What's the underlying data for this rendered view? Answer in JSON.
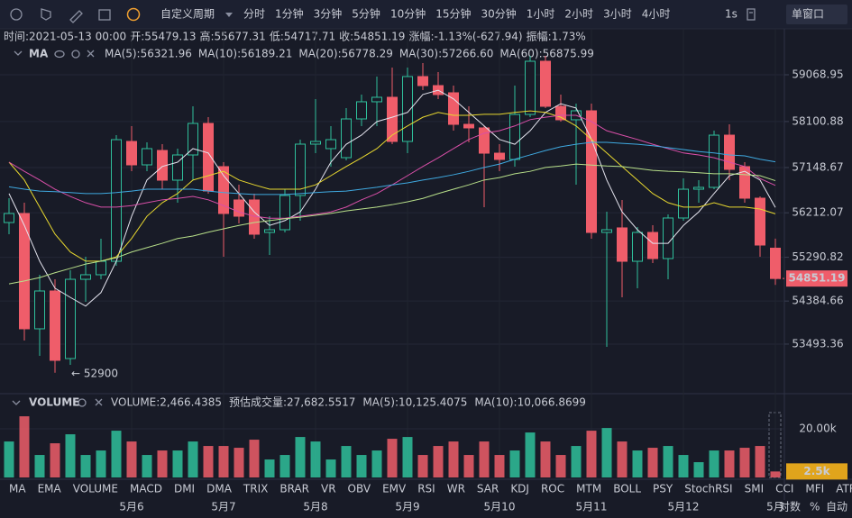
{
  "toolbar": {
    "period": "自定义周期",
    "intervals": [
      {
        "label": "分时"
      },
      {
        "label": "1分钟"
      },
      {
        "label": "3分钟"
      },
      {
        "label": "5分钟"
      },
      {
        "label": "10分钟"
      },
      {
        "label": "15分钟"
      },
      {
        "label": "30分钟"
      },
      {
        "label": "1小时"
      },
      {
        "label": "2小时"
      },
      {
        "label": "3小时"
      },
      {
        "label": "4小时",
        "active": true
      }
    ],
    "speed": "1s",
    "window": "单窗口"
  },
  "info": [
    {
      "label": "时间:",
      "value": "2021-05-13 00:00",
      "color": "#c8cbd4"
    },
    {
      "label": "开:",
      "value": "55479.13",
      "color": "#ef5d6a"
    },
    {
      "label": "高:",
      "value": "55677.31",
      "color": "#ef5d6a"
    },
    {
      "label": "低:",
      "value": "54717.71",
      "color": "#ef5d6a"
    },
    {
      "label": "收:",
      "value": "54851.19",
      "color": "#ef5d6a"
    },
    {
      "label": "涨幅:",
      "value": "-1.13%(-627.94)",
      "color": "#ef5d6a"
    },
    {
      "label": "振幅:",
      "value": "1.73%",
      "color": "#ef5d6a"
    }
  ],
  "chart_data": {
    "type": "candlestick",
    "categories": [
      null,
      null,
      null,
      null,
      null,
      null,
      null,
      null,
      "5月6",
      null,
      null,
      null,
      null,
      null,
      "5月7",
      null,
      null,
      null,
      null,
      null,
      "5月8",
      null,
      null,
      null,
      null,
      null,
      "5月9",
      null,
      null,
      null,
      null,
      null,
      "5月10",
      null,
      null,
      null,
      null,
      null,
      "5月11",
      null,
      null,
      null,
      null,
      null,
      "5月12",
      null,
      null,
      null,
      null,
      null,
      "5月"
    ],
    "open": [
      56010,
      56197,
      53810,
      54593,
      53194,
      54835,
      54929,
      55208,
      57689,
      57204,
      57502,
      56887,
      57409,
      58062,
      57167,
      56477,
      56477,
      55805,
      55861,
      56570,
      57633,
      57540,
      57353,
      58155,
      58510,
      58603,
      57689,
      59032,
      58845,
      58696,
      58043,
      57969,
      57446,
      57316,
      58248,
      59349,
      58416,
      58137,
      58323,
      55805,
      55899,
      55208,
      55805,
      55264,
      56104,
      56700,
      56738,
      57819,
      57167,
      56514,
      55479.13
    ],
    "high": [
      56514,
      56421,
      54929,
      54835,
      55022,
      55302,
      55675,
      57819,
      58006,
      57670,
      57633,
      57540,
      58416,
      58192,
      57260,
      56794,
      56607,
      56141,
      56700,
      57726,
      58565,
      58006,
      58379,
      58659,
      59032,
      59218,
      59218,
      59311,
      59125,
      58845,
      58416,
      58006,
      57633,
      58845,
      59461,
      59461,
      58659,
      58472,
      58472,
      56234,
      56477,
      55917,
      55954,
      56178,
      56924,
      56887,
      57913,
      58043,
      57260,
      56551,
      55677.31
    ],
    "low": [
      55768,
      53567,
      53250,
      52900,
      53064,
      54369,
      54835,
      55115,
      57073,
      57073,
      56700,
      56421,
      56887,
      56607,
      55302,
      55992,
      55675,
      55339,
      55805,
      56048,
      57446,
      57167,
      57297,
      58006,
      58006,
      57633,
      57446,
      58752,
      58565,
      57913,
      57670,
      56327,
      57073,
      57167,
      58192,
      58379,
      58099,
      56794,
      55675,
      53437,
      54462,
      54649,
      55171,
      54835,
      56048,
      56421,
      56700,
      56887,
      56421,
      55302,
      54717.71
    ],
    "close": [
      56197,
      53810,
      54593,
      53157,
      54835,
      54929,
      55208,
      57726,
      57204,
      57540,
      56887,
      57409,
      58062,
      56663,
      56197,
      56141,
      55768,
      55861,
      56570,
      57633,
      57689,
      57726,
      58155,
      58510,
      58603,
      57689,
      59032,
      58845,
      58659,
      58043,
      57969,
      57446,
      57316,
      58248,
      59349,
      58416,
      58137,
      58323,
      55805,
      55861,
      55208,
      55805,
      55264,
      56104,
      56700,
      56738,
      57819,
      57111,
      56514,
      55544,
      54851.19
    ],
    "ylim": [
      52504,
      59498
    ],
    "yticks": [
      53493.36,
      54384.66,
      55290.82,
      56212.07,
      57148.67,
      58100.88,
      59068.95
    ],
    "up_color": "#2fbf9b",
    "down_color": "#ef5d6a",
    "annotation": "← 52900",
    "ma_label": "MA",
    "ma": [
      {
        "name": "MA(5):56321.96",
        "color": "#e4e4ee",
        "values": [
          56610,
          55950,
          55210,
          54650,
          54460,
          54280,
          54560,
          55210,
          56140,
          56890,
          57170,
          57260,
          57540,
          57450,
          56980,
          56610,
          56230,
          55950,
          56050,
          56230,
          56700,
          57260,
          57630,
          57820,
          58100,
          58190,
          58290,
          58660,
          58750,
          58570,
          58290,
          58010,
          57730,
          57630,
          57910,
          58290,
          58470,
          58380,
          57730,
          56890,
          56230,
          55860,
          55580,
          55580,
          55950,
          56230,
          56610,
          56980,
          57070,
          56890,
          56321.96
        ]
      },
      {
        "name": "MA(10):56189.21",
        "color": "#e8d82f",
        "values": [
          57260,
          56890,
          56330,
          55770,
          55400,
          55210,
          55210,
          55300,
          55680,
          56140,
          56420,
          56610,
          56890,
          56980,
          57070,
          56890,
          56790,
          56700,
          56700,
          56700,
          56790,
          56980,
          57170,
          57350,
          57540,
          57820,
          58010,
          58190,
          58290,
          58230,
          58230,
          58250,
          58250,
          58290,
          58320,
          58290,
          58190,
          58010,
          57730,
          57450,
          57170,
          56890,
          56610,
          56420,
          56330,
          56330,
          56420,
          56330,
          56330,
          56290,
          56189.21
        ]
      },
      {
        "name": "MA(20):56778.29",
        "color": "#d94fa8",
        "values": [
          57260,
          57070,
          56890,
          56700,
          56550,
          56420,
          56330,
          56330,
          56360,
          56420,
          56480,
          56510,
          56550,
          56480,
          56360,
          56230,
          56140,
          56100,
          56100,
          56140,
          56180,
          56230,
          56330,
          56480,
          56610,
          56790,
          56980,
          57170,
          57350,
          57540,
          57730,
          57860,
          57910,
          58010,
          58140,
          58190,
          58230,
          58230,
          58100,
          57910,
          57820,
          57730,
          57630,
          57540,
          57450,
          57410,
          57350,
          57260,
          57170,
          56920,
          56778.29
        ]
      },
      {
        "name": "MA(30):57266.60",
        "color": "#3fa9e0",
        "values": [
          56750,
          56700,
          56660,
          56650,
          56630,
          56610,
          56610,
          56630,
          56660,
          56700,
          56700,
          56700,
          56700,
          56660,
          56630,
          56610,
          56590,
          56590,
          56590,
          56610,
          56630,
          56650,
          56660,
          56700,
          56740,
          56790,
          56830,
          56890,
          56940,
          57000,
          57070,
          57150,
          57220,
          57320,
          57410,
          57500,
          57580,
          57630,
          57670,
          57670,
          57650,
          57630,
          57600,
          57560,
          57520,
          57480,
          57450,
          57410,
          57390,
          57320,
          57266.6
        ]
      },
      {
        "name": "MA(60):56875.99",
        "color": "#b8e08a",
        "values": [
          54740,
          54800,
          54870,
          54970,
          55060,
          55150,
          55210,
          55280,
          55400,
          55490,
          55580,
          55680,
          55730,
          55810,
          55880,
          55950,
          56010,
          56050,
          56090,
          56120,
          56160,
          56200,
          56250,
          56290,
          56330,
          56380,
          56440,
          56510,
          56610,
          56700,
          56790,
          56890,
          56940,
          57020,
          57070,
          57150,
          57180,
          57220,
          57200,
          57180,
          57170,
          57130,
          57090,
          57070,
          57060,
          57040,
          57020,
          57020,
          57000,
          56980,
          56875.99
        ]
      }
    ],
    "volume": {
      "label": "VOLUME",
      "header": [
        {
          "text": "VOLUME:2,466.4385",
          "color": "#d8dae2"
        },
        {
          "text": "预估成交量:27,682.5517",
          "color": "#6c7080"
        },
        {
          "text": "MA(5):10,125.4075",
          "color": "#d8dae2"
        },
        {
          "text": "MA(10):10,066.8699",
          "color": "#e8d82f"
        }
      ],
      "values": [
        14800,
        25160,
        9250,
        14060,
        17760,
        9250,
        11100,
        19240,
        14800,
        9250,
        11100,
        11100,
        14800,
        12950,
        12950,
        12210,
        15540,
        7400,
        9250,
        16650,
        14800,
        7400,
        12950,
        9250,
        11100,
        15910,
        16650,
        9250,
        12950,
        14800,
        9250,
        14800,
        9250,
        11100,
        18500,
        14800,
        9250,
        12950,
        19240,
        20350,
        14800,
        11100,
        12210,
        12950,
        9250,
        6290,
        11100,
        11100,
        12210,
        12950,
        2466.4385
      ],
      "value_label": "2.5k",
      "ylim": [
        0,
        31500
      ],
      "yticks": [
        {
          "value": 20000,
          "label": "20.00k"
        }
      ]
    }
  },
  "tabs": [
    {
      "label": "MA"
    },
    {
      "label": "EMA"
    },
    {
      "label": "VOLUME",
      "active": true
    },
    {
      "label": "MACD"
    },
    {
      "label": "DMI"
    },
    {
      "label": "DMA"
    },
    {
      "label": "TRIX"
    },
    {
      "label": "BRAR"
    },
    {
      "label": "VR"
    },
    {
      "label": "OBV"
    },
    {
      "label": "EMV"
    },
    {
      "label": "RSI"
    },
    {
      "label": "WR"
    },
    {
      "label": "SAR"
    },
    {
      "label": "KDJ"
    },
    {
      "label": "ROC"
    },
    {
      "label": "MTM"
    },
    {
      "label": "BOLL"
    },
    {
      "label": "PSY"
    },
    {
      "label": "StochRSI"
    },
    {
      "label": "SMI"
    },
    {
      "label": "CCI"
    },
    {
      "label": "MFI"
    },
    {
      "label": "ATR"
    }
  ],
  "controls": [
    "对数",
    "%",
    "自动"
  ]
}
